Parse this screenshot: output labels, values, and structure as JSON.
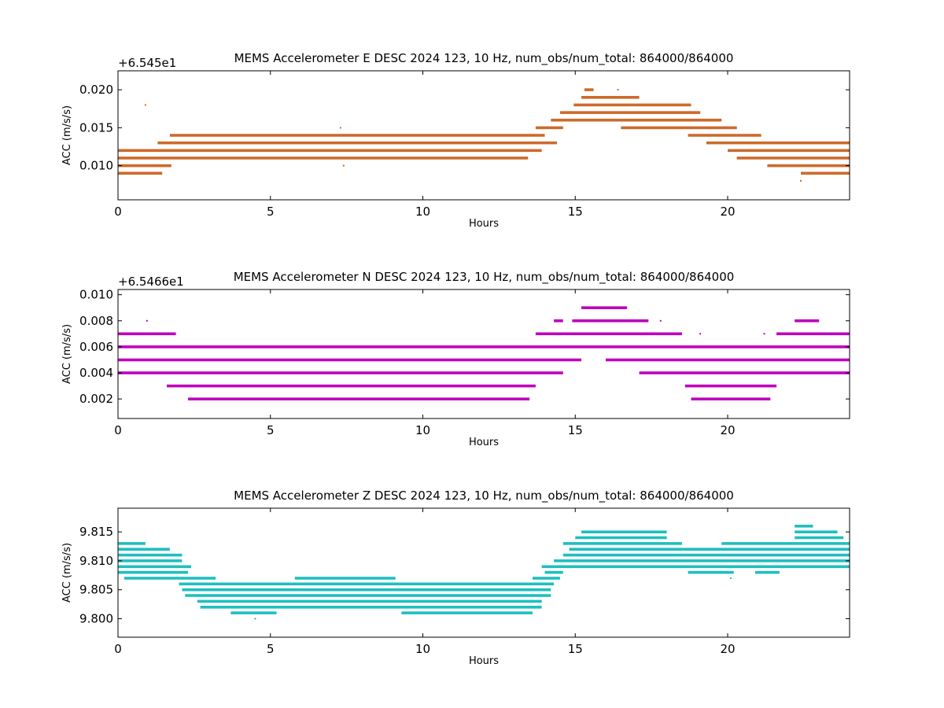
{
  "chart_data": [
    {
      "type": "scatter",
      "title": "MEMS Accelerometer E DESC 2024 123, 10 Hz, num_obs/num_total: 864000/864000",
      "xlabel": "Hours",
      "ylabel": "ACC (m/s/s)",
      "offset_label": "+6.545e1",
      "xlim": [
        0,
        24
      ],
      "ylim": [
        0.0055,
        0.0225
      ],
      "xticks": [
        "0",
        "5",
        "10",
        "15",
        "20"
      ],
      "yticks": [
        "0.010",
        "0.015",
        "0.020"
      ],
      "color": "#cd6a2a",
      "grid": false,
      "segments": [
        {
          "y": 0.009,
          "x": [
            [
              0.0,
              1.45
            ],
            [
              22.4,
              24.0
            ]
          ]
        },
        {
          "y": 0.01,
          "x": [
            [
              0.0,
              1.75
            ],
            [
              21.3,
              24.0
            ]
          ]
        },
        {
          "y": 0.011,
          "x": [
            [
              0.0,
              13.45
            ],
            [
              20.3,
              24.0
            ]
          ]
        },
        {
          "y": 0.012,
          "x": [
            [
              0.0,
              13.9
            ],
            [
              20.0,
              24.0
            ]
          ]
        },
        {
          "y": 0.013,
          "x": [
            [
              1.3,
              14.4
            ],
            [
              19.3,
              24.0
            ]
          ]
        },
        {
          "y": 0.014,
          "x": [
            [
              1.7,
              14.0
            ],
            [
              18.7,
              21.1
            ]
          ]
        },
        {
          "y": 0.015,
          "x": [
            [
              13.7,
              14.6
            ],
            [
              16.5,
              20.3
            ]
          ]
        },
        {
          "y": 0.016,
          "x": [
            [
              14.2,
              19.8
            ]
          ]
        },
        {
          "y": 0.017,
          "x": [
            [
              14.5,
              19.1
            ]
          ]
        },
        {
          "y": 0.018,
          "x": [
            [
              14.95,
              18.8
            ]
          ]
        },
        {
          "y": 0.019,
          "x": [
            [
              15.2,
              17.1
            ]
          ]
        },
        {
          "y": 0.02,
          "x": [
            [
              15.3,
              15.6
            ]
          ]
        }
      ],
      "outliers": [
        {
          "x": 0.9,
          "y": 0.018
        },
        {
          "x": 7.3,
          "y": 0.015
        },
        {
          "x": 7.4,
          "y": 0.01
        },
        {
          "x": 22.4,
          "y": 0.008
        },
        {
          "x": 16.4,
          "y": 0.02
        }
      ]
    },
    {
      "type": "scatter",
      "title": "MEMS Accelerometer N DESC 2024 123, 10 Hz, num_obs/num_total: 864000/864000",
      "xlabel": "Hours",
      "ylabel": "ACC (m/s/s)",
      "offset_label": "+6.5466e1",
      "xlim": [
        0,
        24
      ],
      "ylim": [
        0.0005,
        0.0104
      ],
      "xticks": [
        "0",
        "5",
        "10",
        "15",
        "20"
      ],
      "yticks": [
        "0.002",
        "0.004",
        "0.006",
        "0.008",
        "0.010"
      ],
      "color": "#bf00bf",
      "grid": false,
      "segments": [
        {
          "y": 0.002,
          "x": [
            [
              2.3,
              13.5
            ],
            [
              18.8,
              21.4
            ]
          ]
        },
        {
          "y": 0.003,
          "x": [
            [
              1.6,
              13.7
            ],
            [
              18.6,
              21.6
            ]
          ]
        },
        {
          "y": 0.004,
          "x": [
            [
              0.0,
              14.6
            ],
            [
              17.1,
              24.0
            ]
          ]
        },
        {
          "y": 0.005,
          "x": [
            [
              0.0,
              15.2
            ],
            [
              16.0,
              24.0
            ]
          ]
        },
        {
          "y": 0.006,
          "x": [
            [
              0.0,
              24.0
            ]
          ]
        },
        {
          "y": 0.007,
          "x": [
            [
              0.0,
              1.9
            ],
            [
              13.7,
              18.5
            ],
            [
              21.6,
              24.0
            ]
          ]
        },
        {
          "y": 0.008,
          "x": [
            [
              14.3,
              14.6
            ],
            [
              14.9,
              17.4
            ],
            [
              22.2,
              23.0
            ]
          ]
        },
        {
          "y": 0.009,
          "x": [
            [
              15.2,
              16.7
            ]
          ]
        }
      ],
      "outliers": [
        {
          "x": 0.95,
          "y": 0.008
        },
        {
          "x": 17.8,
          "y": 0.008
        },
        {
          "x": 19.1,
          "y": 0.007
        },
        {
          "x": 21.2,
          "y": 0.007
        }
      ]
    },
    {
      "type": "scatter",
      "title": "MEMS Accelerometer Z DESC 2024 123, 10 Hz, num_obs/num_total: 864000/864000",
      "xlabel": "Hours",
      "ylabel": "ACC (m/s/s)",
      "offset_label": "",
      "xlim": [
        0,
        24
      ],
      "ylim": [
        9.7968,
        9.8191
      ],
      "xticks": [
        "0",
        "5",
        "10",
        "15",
        "20"
      ],
      "yticks": [
        "9.800",
        "9.805",
        "9.810",
        "9.815"
      ],
      "color": "#1fbfbf",
      "grid": false,
      "segments": [
        {
          "y": 9.801,
          "x": [
            [
              3.7,
              5.2
            ],
            [
              9.3,
              13.6
            ]
          ]
        },
        {
          "y": 9.802,
          "x": [
            [
              2.7,
              13.9
            ]
          ]
        },
        {
          "y": 9.803,
          "x": [
            [
              2.6,
              13.9
            ]
          ]
        },
        {
          "y": 9.804,
          "x": [
            [
              2.2,
              14.2
            ]
          ]
        },
        {
          "y": 9.805,
          "x": [
            [
              2.1,
              14.2
            ]
          ]
        },
        {
          "y": 9.806,
          "x": [
            [
              2.0,
              14.3
            ]
          ]
        },
        {
          "y": 9.807,
          "x": [
            [
              0.2,
              3.2
            ],
            [
              5.8,
              9.1
            ],
            [
              13.6,
              14.5
            ]
          ]
        },
        {
          "y": 9.808,
          "x": [
            [
              0.0,
              2.3
            ],
            [
              14.0,
              14.6
            ],
            [
              18.7,
              20.2
            ],
            [
              20.9,
              21.7
            ]
          ]
        },
        {
          "y": 9.809,
          "x": [
            [
              0.0,
              2.4
            ],
            [
              13.9,
              24.0
            ]
          ]
        },
        {
          "y": 9.81,
          "x": [
            [
              0.0,
              2.1
            ],
            [
              14.3,
              24.0
            ]
          ]
        },
        {
          "y": 9.811,
          "x": [
            [
              0.0,
              2.1
            ],
            [
              14.6,
              24.0
            ]
          ]
        },
        {
          "y": 9.812,
          "x": [
            [
              0.0,
              1.7
            ],
            [
              14.8,
              24.0
            ]
          ]
        },
        {
          "y": 9.813,
          "x": [
            [
              0.0,
              0.9
            ],
            [
              14.6,
              18.5
            ],
            [
              19.8,
              24.0
            ]
          ]
        },
        {
          "y": 9.814,
          "x": [
            [
              15.0,
              18.0
            ],
            [
              22.2,
              23.8
            ]
          ]
        },
        {
          "y": 9.815,
          "x": [
            [
              15.2,
              18.0
            ],
            [
              22.2,
              23.6
            ]
          ]
        },
        {
          "y": 9.816,
          "x": [
            [
              22.2,
              22.8
            ]
          ]
        }
      ],
      "outliers": [
        {
          "x": 4.5,
          "y": 9.8
        },
        {
          "x": 20.1,
          "y": 9.807
        },
        {
          "x": 0.5,
          "y": 9.813
        }
      ]
    }
  ]
}
